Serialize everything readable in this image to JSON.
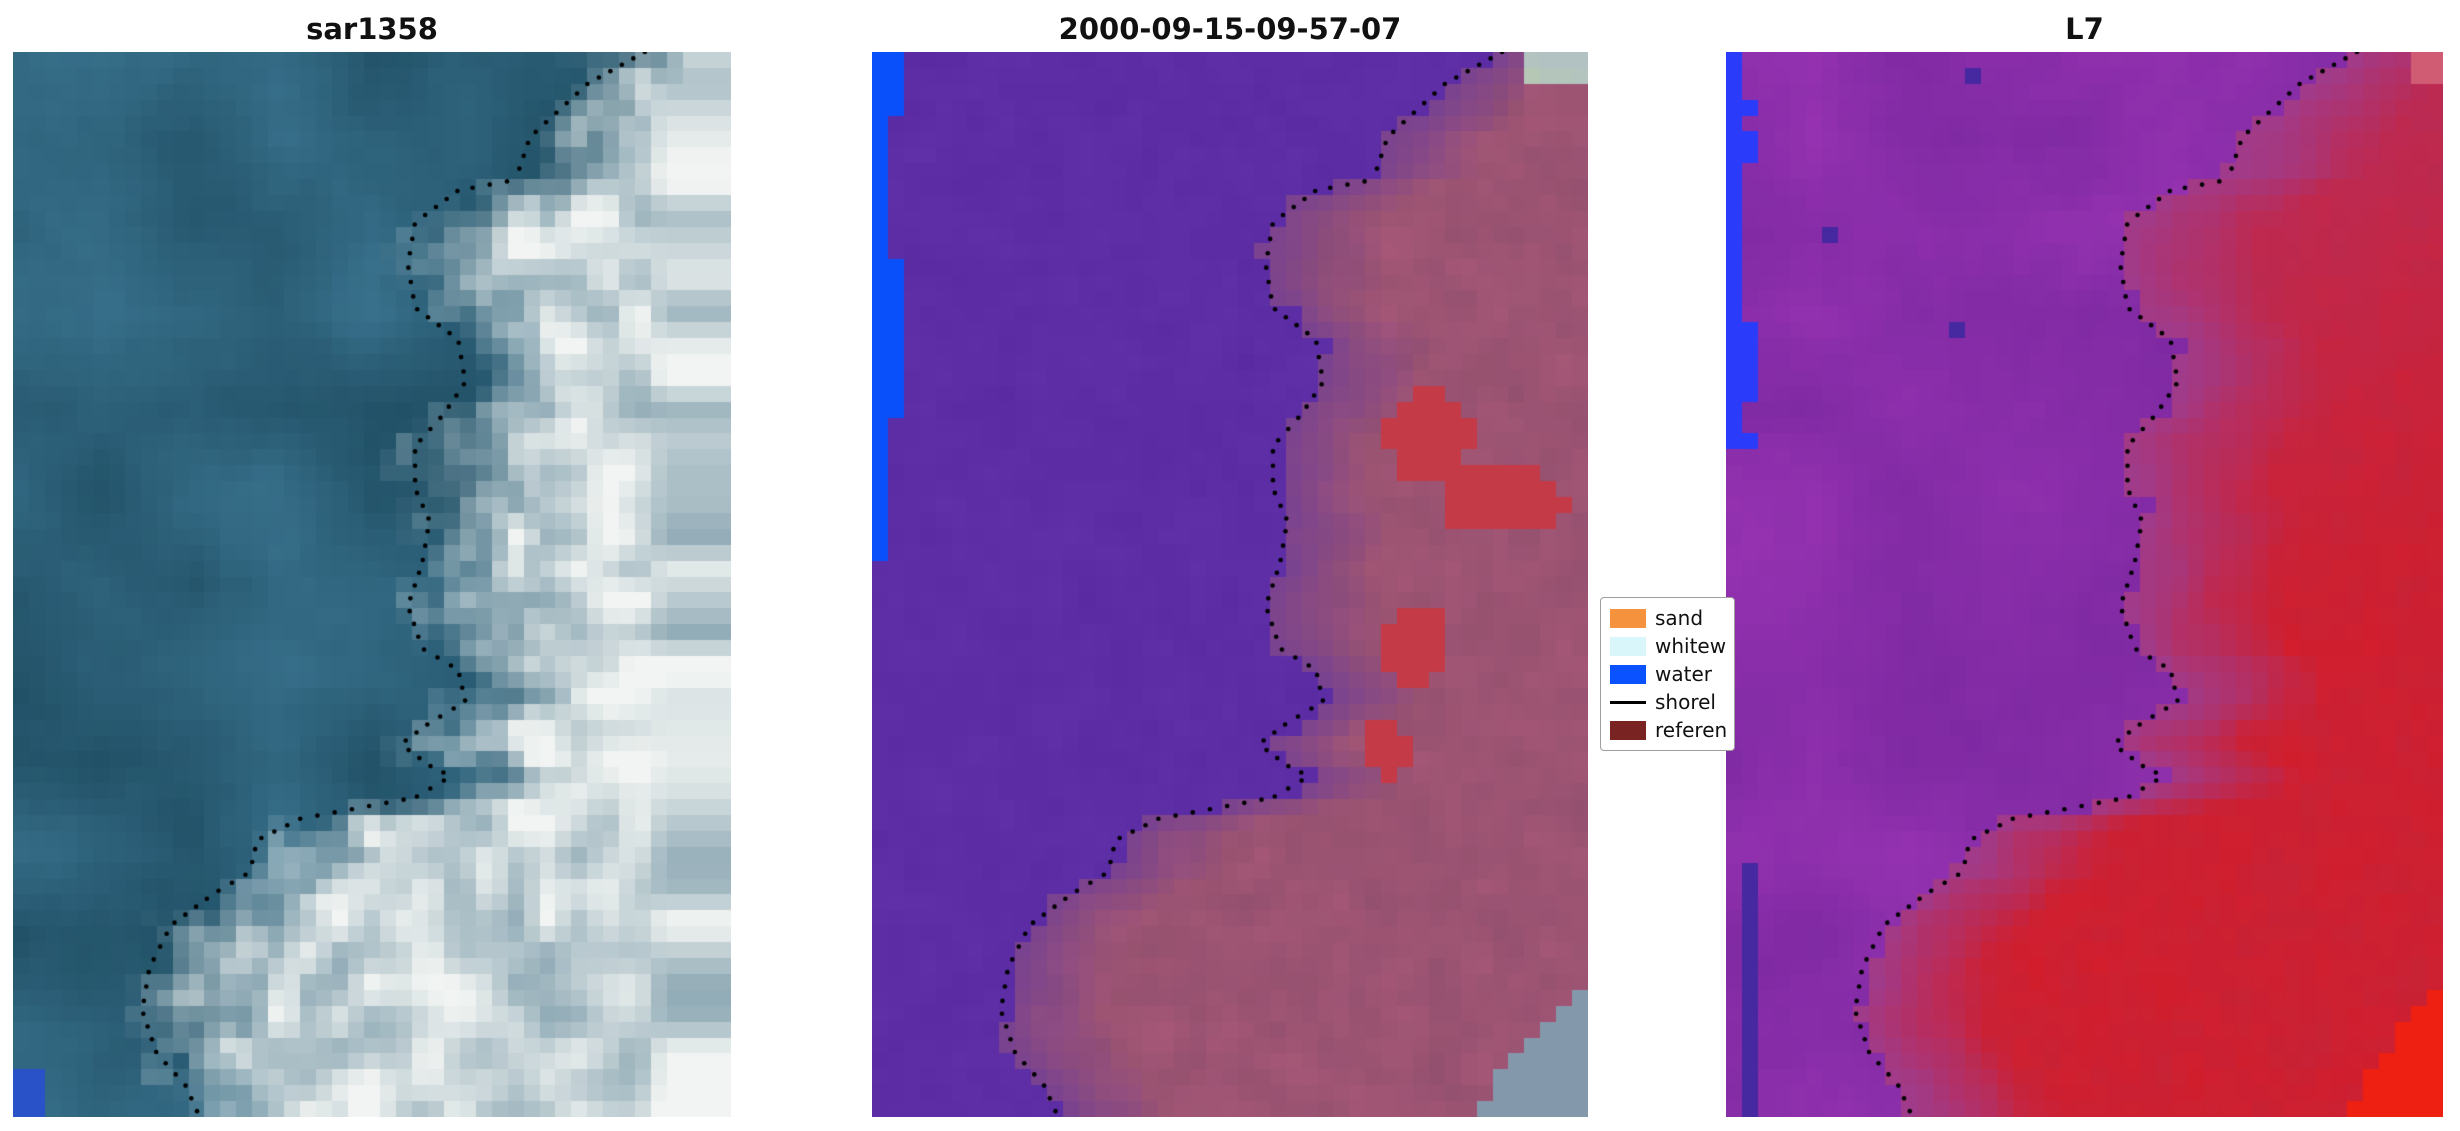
{
  "figure": {
    "background": "#ffffff"
  },
  "chart_data": {
    "type": "image_grid",
    "description": "Three coastal satellite image subplots (SAR, classified optical scene, Landsat 7) sharing the same mapped shoreline drawn as a black dotted overlay",
    "axes": "off",
    "panels": [
      {
        "title": "sar1358",
        "style": "sar",
        "palette": {
          "water_dark": "#1e4d62",
          "water_light": "#3d7692",
          "cloud_dim": "#93adb8",
          "cloud_bright": "#f1f4f2",
          "corner_blue": "#2a52c8"
        },
        "features": {
          "corner_blue_bottom_left": true
        }
      },
      {
        "title": "2000-09-15-09-57-07",
        "style": "classified",
        "palette": {
          "water": "#5a2aa2",
          "water2": "#6638b0",
          "land": "#a85878",
          "land2": "#91506e",
          "blend": "#7a4390",
          "red": "#c43a46",
          "blue": "#0a50fa",
          "gray": "#7e93a8",
          "top_right": "#b7c9b4"
        },
        "features": {
          "red_patches": [
            [
              0.78,
              0.36,
              0.06,
              0.045
            ],
            [
              0.88,
              0.42,
              0.08,
              0.035
            ],
            [
              0.76,
              0.555,
              0.05,
              0.04
            ],
            [
              0.72,
              0.655,
              0.035,
              0.03
            ]
          ],
          "blue_segments": [
            [
              0,
              0.065,
              0.055
            ],
            [
              0.065,
              0.2,
              0.025
            ],
            [
              0.2,
              0.34,
              0.05
            ],
            [
              0.34,
              0.475,
              0.03
            ]
          ],
          "gray_corner_bottom_right": true,
          "light_top_right": true
        }
      },
      {
        "title": "L7",
        "style": "l7",
        "palette": {
          "water": "#7a28a0",
          "water2": "#9a34b4",
          "dark_cell": "#4628a0",
          "land_near": "#a03c8c",
          "red": "#c62338",
          "red2": "#d41e2c",
          "blue": "#2a3cfa",
          "corner_red": "#ee2012",
          "top_right": "#d05c74"
        },
        "features": {
          "blue_segments": [
            [
              0,
              0.1,
              0.032
            ],
            [
              0.1,
              0.25,
              0.018
            ],
            [
              0.25,
              0.37,
              0.034
            ]
          ],
          "red_corner_bottom_right": true,
          "pink_top_right": true
        }
      }
    ],
    "legend": {
      "position": "center-right, between second and third panels",
      "items": [
        {
          "label": "sand",
          "swatch": "rect",
          "color": "#f5923e"
        },
        {
          "label": "whitew",
          "swatch": "rect",
          "color": "#d9f6fb"
        },
        {
          "label": "water",
          "swatch": "rect",
          "color": "#0a51ff"
        },
        {
          "label": "shorel",
          "swatch": "line",
          "color": "#000000"
        },
        {
          "label": "referen",
          "swatch": "rect",
          "color": "#7a2323"
        }
      ]
    },
    "shoreline_style": {
      "color": "#000000",
      "pattern": "dotted"
    },
    "shoreline_points": [
      [
        0.88,
        0.0
      ],
      [
        0.8,
        0.03
      ],
      [
        0.72,
        0.08
      ],
      [
        0.7,
        0.12
      ],
      [
        0.62,
        0.13
      ],
      [
        0.56,
        0.16
      ],
      [
        0.55,
        0.2
      ],
      [
        0.56,
        0.24
      ],
      [
        0.62,
        0.27
      ],
      [
        0.63,
        0.31
      ],
      [
        0.6,
        0.34
      ],
      [
        0.56,
        0.37
      ],
      [
        0.56,
        0.41
      ],
      [
        0.58,
        0.44
      ],
      [
        0.57,
        0.48
      ],
      [
        0.55,
        0.52
      ],
      [
        0.57,
        0.56
      ],
      [
        0.62,
        0.58
      ],
      [
        0.63,
        0.61
      ],
      [
        0.58,
        0.63
      ],
      [
        0.54,
        0.65
      ],
      [
        0.58,
        0.67
      ],
      [
        0.61,
        0.68
      ],
      [
        0.56,
        0.7
      ],
      [
        0.48,
        0.71
      ],
      [
        0.4,
        0.72
      ],
      [
        0.34,
        0.74
      ],
      [
        0.33,
        0.77
      ],
      [
        0.28,
        0.79
      ],
      [
        0.22,
        0.82
      ],
      [
        0.19,
        0.86
      ],
      [
        0.18,
        0.9
      ],
      [
        0.2,
        0.94
      ],
      [
        0.24,
        0.97
      ],
      [
        0.26,
        1.0
      ]
    ]
  }
}
